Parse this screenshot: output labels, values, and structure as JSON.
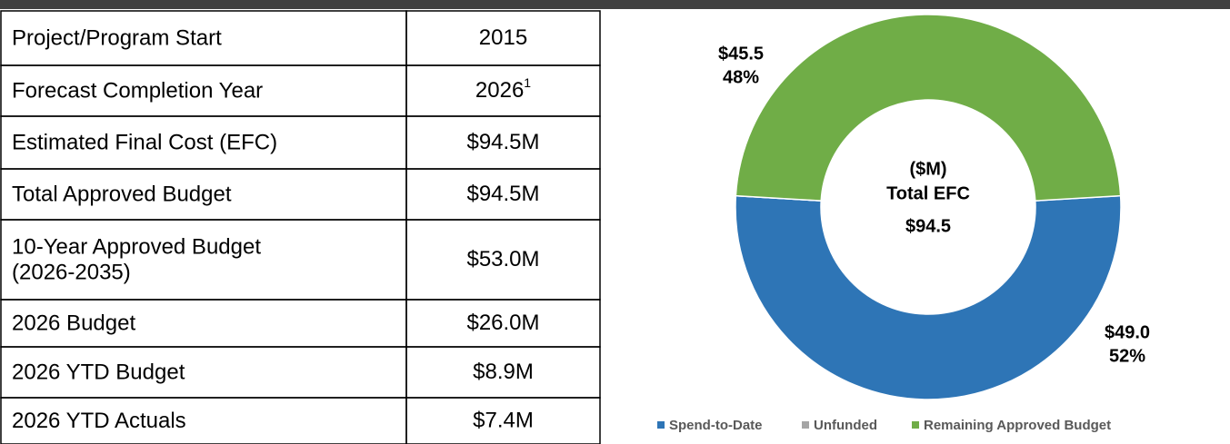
{
  "table": {
    "rows": [
      [
        "Project/Program Start",
        "2015"
      ],
      [
        "Forecast Completion Year",
        "2026",
        "1"
      ],
      [
        "Estimated Final Cost (EFC)",
        "$94.5M"
      ],
      [
        "Total Approved Budget",
        "$94.5M"
      ],
      [
        [
          "10-Year Approved Budget",
          "(2026-2035)"
        ],
        "$53.0M"
      ],
      [
        "2026 Budget",
        "$26.0M"
      ],
      [
        "2026 YTD Budget",
        "$8.9M"
      ],
      [
        "2026 YTD Actuals",
        "$7.4M"
      ]
    ]
  },
  "chart_data": {
    "type": "donut",
    "categories": [
      "Spend-to-Date",
      "Unfunded",
      "Remaining Approved Budget"
    ],
    "values": [
      49.0,
      0,
      45.5
    ],
    "value_labels": [
      "$49.0",
      null,
      "$45.5"
    ],
    "percent_labels": [
      "52%",
      null,
      "48%"
    ],
    "colors": [
      "#2e75b6",
      "#a5a5a5",
      "#70ad47"
    ],
    "center_labels": [
      "($M)",
      "Total EFC"
    ],
    "total_label": "$94.5",
    "legend": "bottom"
  }
}
